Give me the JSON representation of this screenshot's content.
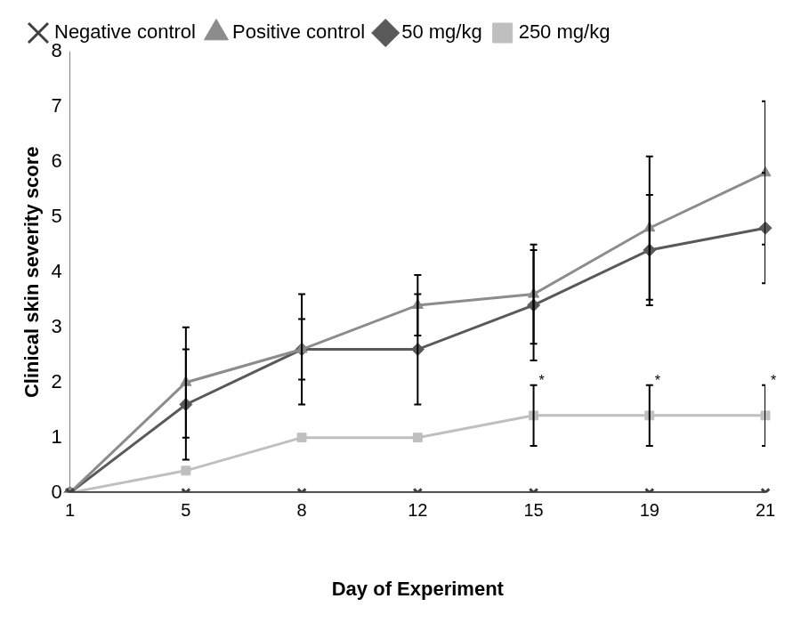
{
  "chart_data": {
    "type": "line",
    "x_label": "Day of Experiment",
    "y_label": "Clinical skin severity score",
    "categories": [
      1,
      5,
      8,
      12,
      15,
      19,
      21
    ],
    "ylim": [
      0,
      8
    ],
    "yticks": [
      0,
      1,
      2,
      3,
      4,
      5,
      6,
      7,
      8
    ],
    "grid": false,
    "legend": "top-left",
    "series": [
      {
        "name": "Negative control",
        "color": "#404040",
        "marker": "x",
        "values": [
          0,
          0,
          0,
          0,
          0,
          0,
          0
        ],
        "errors": [
          null,
          null,
          null,
          null,
          null,
          null,
          null
        ],
        "annotations": [
          null,
          null,
          null,
          null,
          null,
          null,
          null
        ]
      },
      {
        "name": "Positive control",
        "color": "#8c8c8c",
        "marker": "triangle",
        "values": [
          0,
          2.0,
          2.6,
          3.4,
          3.6,
          4.8,
          5.8
        ],
        "errors": [
          null,
          1.0,
          0.55,
          0.55,
          0.9,
          1.3,
          1.3
        ],
        "annotations": [
          null,
          null,
          null,
          null,
          null,
          null,
          null
        ]
      },
      {
        "name": "50 mg/kg",
        "color": "#595959",
        "marker": "diamond",
        "values": [
          0,
          1.6,
          2.6,
          2.6,
          3.4,
          4.4,
          4.8
        ],
        "errors": [
          null,
          1.0,
          1.0,
          1.0,
          1.0,
          1.0,
          1.0
        ],
        "annotations": [
          null,
          null,
          null,
          null,
          null,
          null,
          null
        ]
      },
      {
        "name": "250 mg/kg",
        "color": "#bfbfbf",
        "marker": "square",
        "values": [
          0,
          0.4,
          1.0,
          1.0,
          1.4,
          1.4,
          1.4
        ],
        "errors": [
          null,
          null,
          null,
          null,
          0.55,
          0.55,
          0.55
        ],
        "annotations": [
          null,
          null,
          null,
          null,
          "*",
          "*",
          "*"
        ]
      }
    ]
  }
}
